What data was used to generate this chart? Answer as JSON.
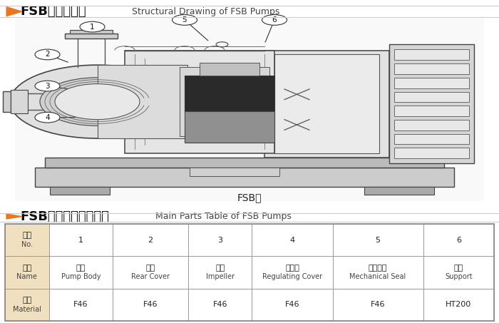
{
  "title1_cn": "FSB型泵结构图",
  "title1_en": " Structural Drawing of FSB Pumps",
  "title2_cn": "FSB型泵主要零部件表",
  "title2_en": " Main Parts Table of FSB Pumps",
  "diagram_label": "FSB型",
  "table_header": [
    "序号\nNo.",
    "1",
    "2",
    "3",
    "4",
    "5",
    "6"
  ],
  "table_material": [
    "材料\nMaterial",
    "F46",
    "F46",
    "F46",
    "F46",
    "F46",
    "HT200"
  ],
  "bg_color": "#ffffff",
  "orange_color": "#e87722",
  "title_cn_size": 13,
  "title_en_size": 9,
  "col_weights": [
    0.09,
    0.13,
    0.155,
    0.13,
    0.165,
    0.185,
    0.145
  ]
}
